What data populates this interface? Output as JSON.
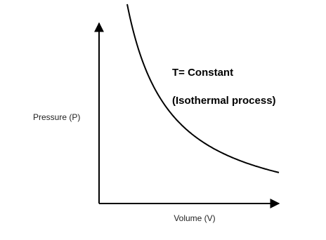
{
  "y_axis_label": "Pressure (P)",
  "x_axis_label": "Volume (V)",
  "annotations": [
    "T= Constant",
    "(Isothermal process)"
  ]
}
